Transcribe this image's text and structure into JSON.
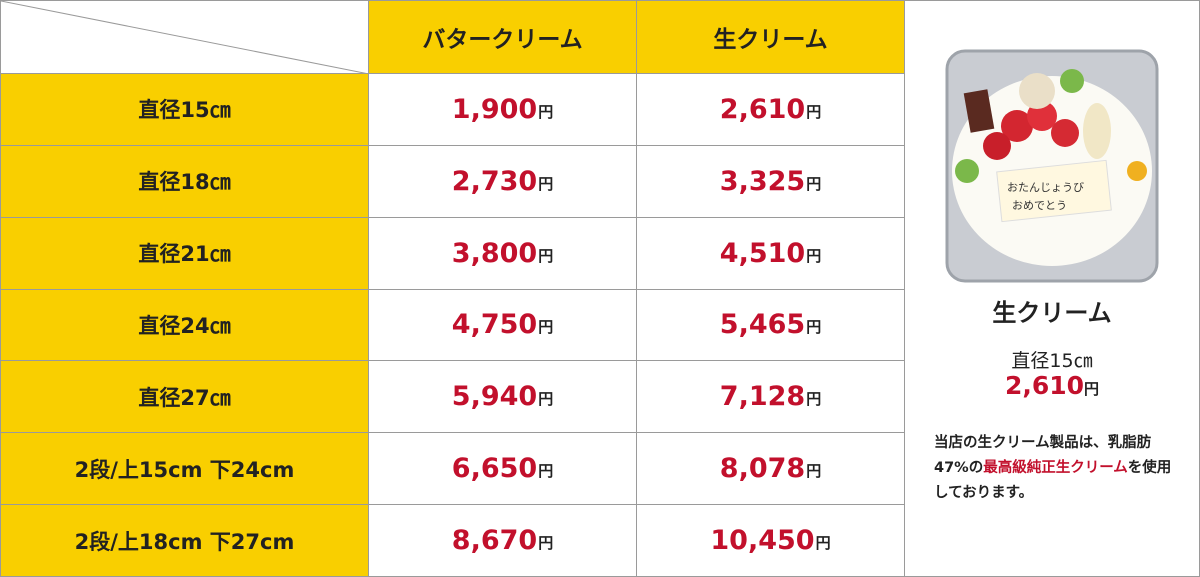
{
  "table": {
    "columns": [
      "バタークリーム",
      "生クリーム"
    ],
    "unit": "円",
    "rows": [
      {
        "label": "直径15㎝",
        "prices": [
          "1,900",
          "2,610"
        ]
      },
      {
        "label": "直径18㎝",
        "prices": [
          "2,730",
          "3,325"
        ]
      },
      {
        "label": "直径21㎝",
        "prices": [
          "3,800",
          "4,510"
        ]
      },
      {
        "label": "直径24㎝",
        "prices": [
          "4,750",
          "5,465"
        ]
      },
      {
        "label": "直径27㎝",
        "prices": [
          "5,940",
          "7,128"
        ]
      },
      {
        "label": "2段/上15cm 下24cm",
        "prices": [
          "6,650",
          "8,078"
        ]
      },
      {
        "label": "2段/上18cm 下27cm",
        "prices": [
          "8,670",
          "10,450"
        ]
      }
    ]
  },
  "side": {
    "title": "生クリーム",
    "size": "直径15㎝",
    "price": "2,610",
    "note": [
      "当店の生クリーム製品は、乳脂肪47%の",
      "最高級純正生クリーム",
      "を使用しております。"
    ]
  }
}
